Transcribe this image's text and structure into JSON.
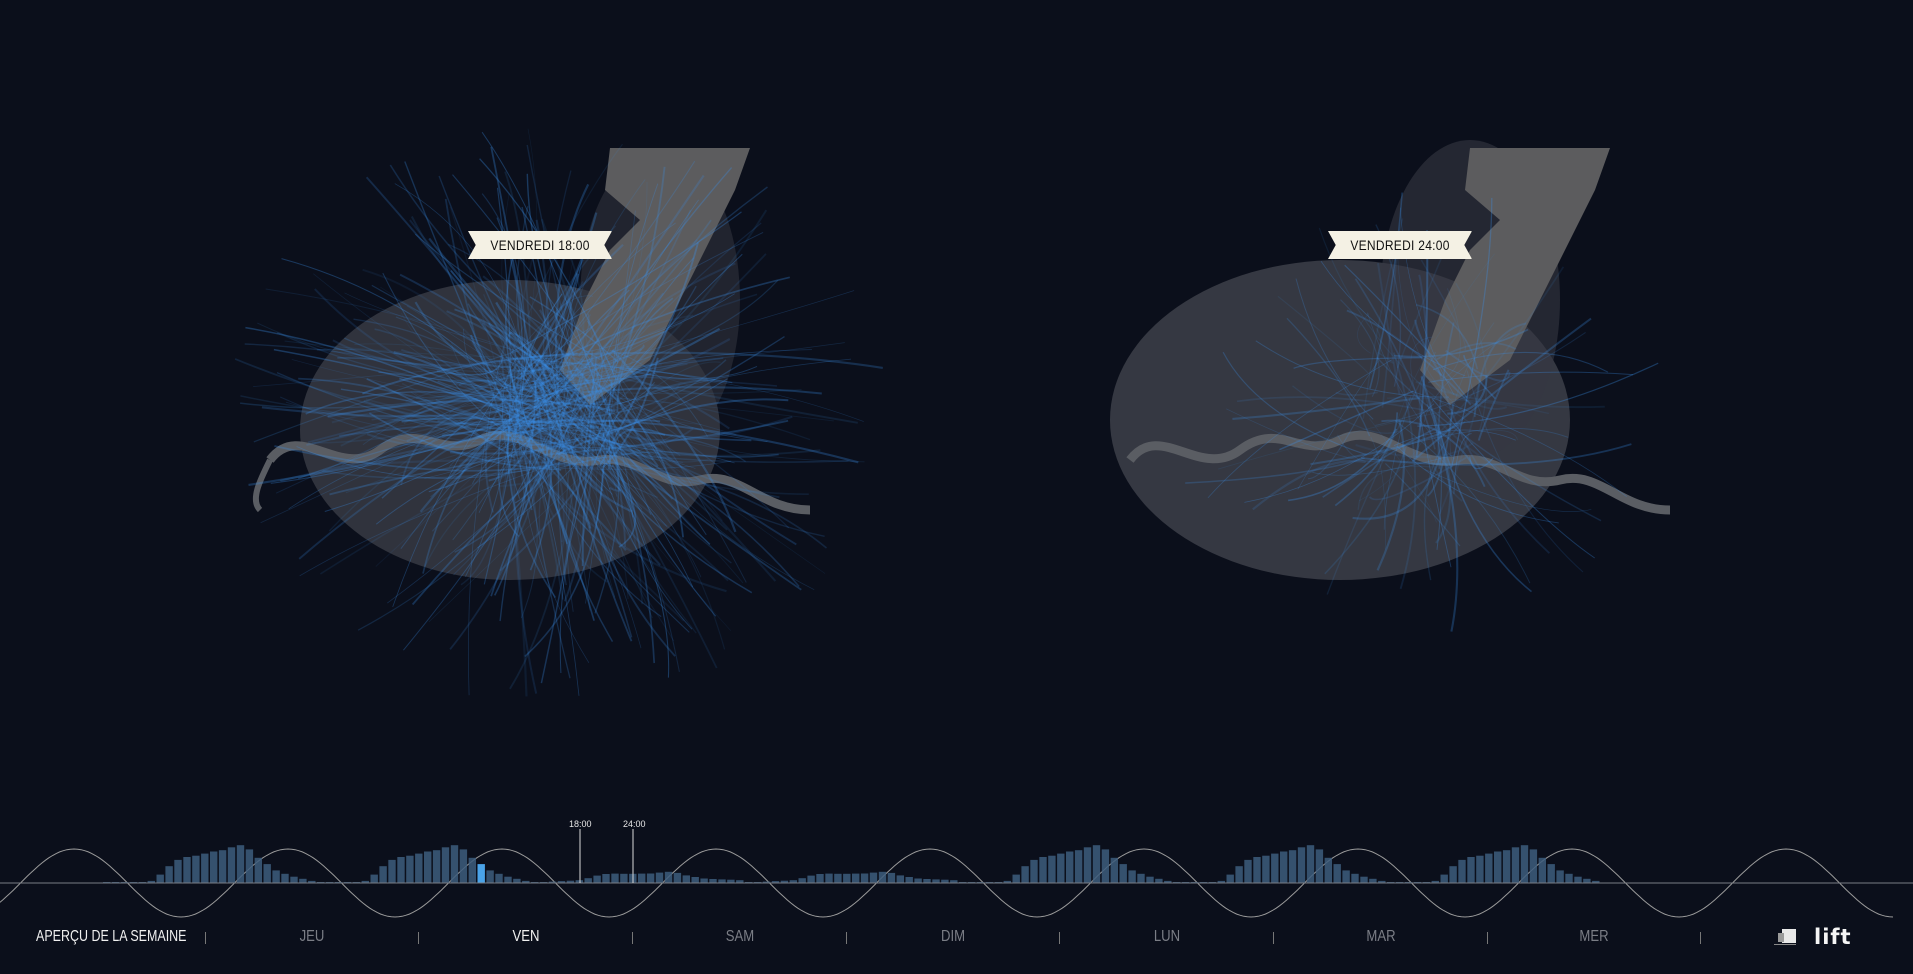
{
  "maps": {
    "left": {
      "label": "VENDREDI 18:00",
      "intensity": "high"
    },
    "right": {
      "label": "VENDREDI 24:00",
      "intensity": "low"
    }
  },
  "timeline": {
    "markers": {
      "t18": "18:00",
      "t24": "24:00"
    },
    "selected_hours": [
      "18:00",
      "24:00"
    ]
  },
  "nav": {
    "title": "APERÇU DE LA SEMAINE",
    "days": [
      {
        "label": "JEU",
        "active": false
      },
      {
        "label": "VEN",
        "active": true
      },
      {
        "label": "SAM",
        "active": false
      },
      {
        "label": "DIM",
        "active": false
      },
      {
        "label": "LUN",
        "active": false
      },
      {
        "label": "MAR",
        "active": false
      },
      {
        "label": "MER",
        "active": false
      }
    ]
  },
  "brand": {
    "logo": "lift"
  },
  "colors": {
    "background": "#0b0f1b",
    "flow_blue": "#3b8fe8",
    "city_gray": "#4a4d55",
    "lake_gray": "#5c5c5e",
    "bars": "#3d5d7c",
    "bar_highlight": "#4aa3e8",
    "banner": "#f4f1e4"
  },
  "icons": [
    "partner-logo-icon"
  ]
}
